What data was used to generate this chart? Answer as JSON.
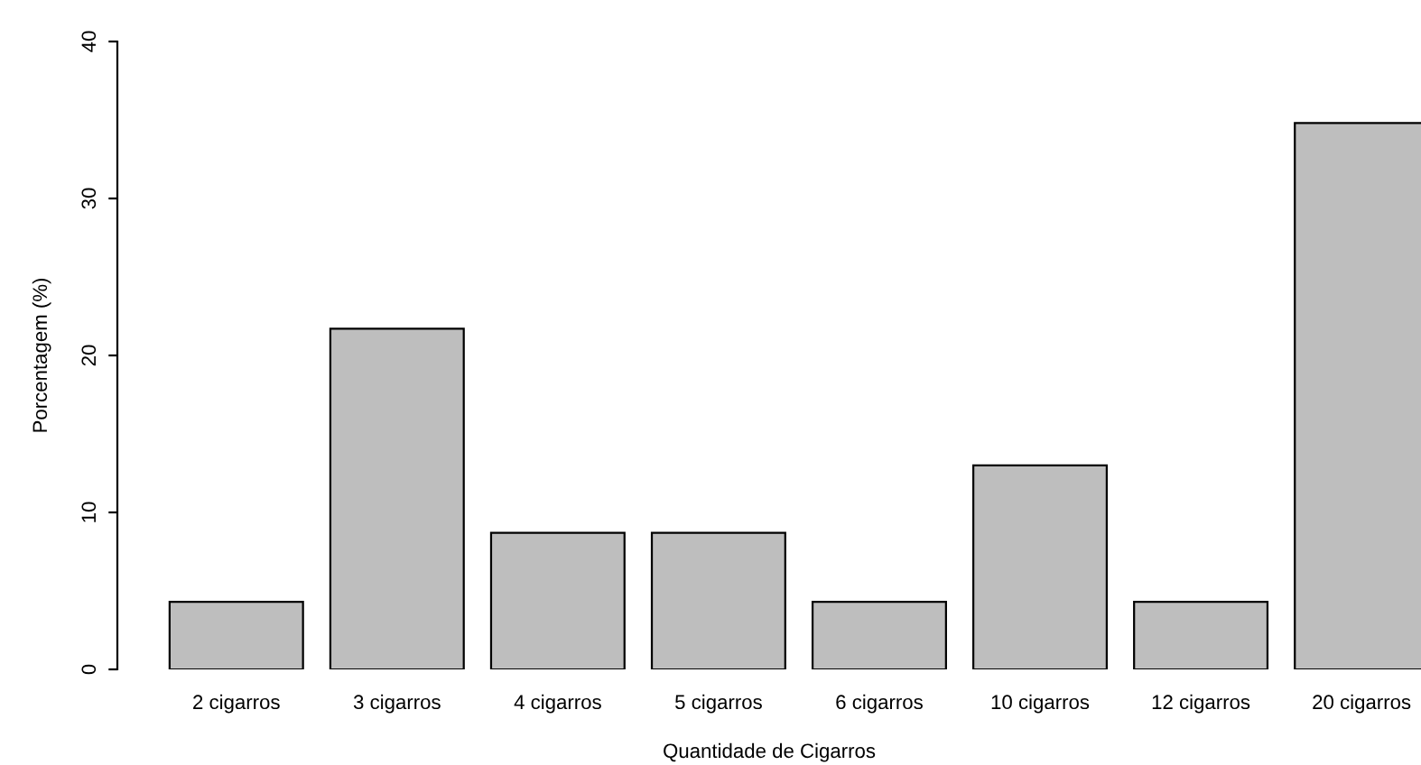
{
  "chart_data": {
    "type": "bar",
    "xlabel": "Quantidade de Cigarros",
    "ylabel": "Porcentagem (%)",
    "categories": [
      "2 cigarros",
      "3 cigarros",
      "4 cigarros",
      "5 cigarros",
      "6 cigarros",
      "10 cigarros",
      "12 cigarros",
      "20 cigarros"
    ],
    "values": [
      4.3,
      21.7,
      8.7,
      8.7,
      4.3,
      13.0,
      4.3,
      34.8
    ],
    "color": "#bebebe",
    "ylim": [
      0,
      40
    ],
    "yticks": [
      0,
      10,
      20,
      30,
      40
    ],
    "grid": false,
    "legend": false
  }
}
